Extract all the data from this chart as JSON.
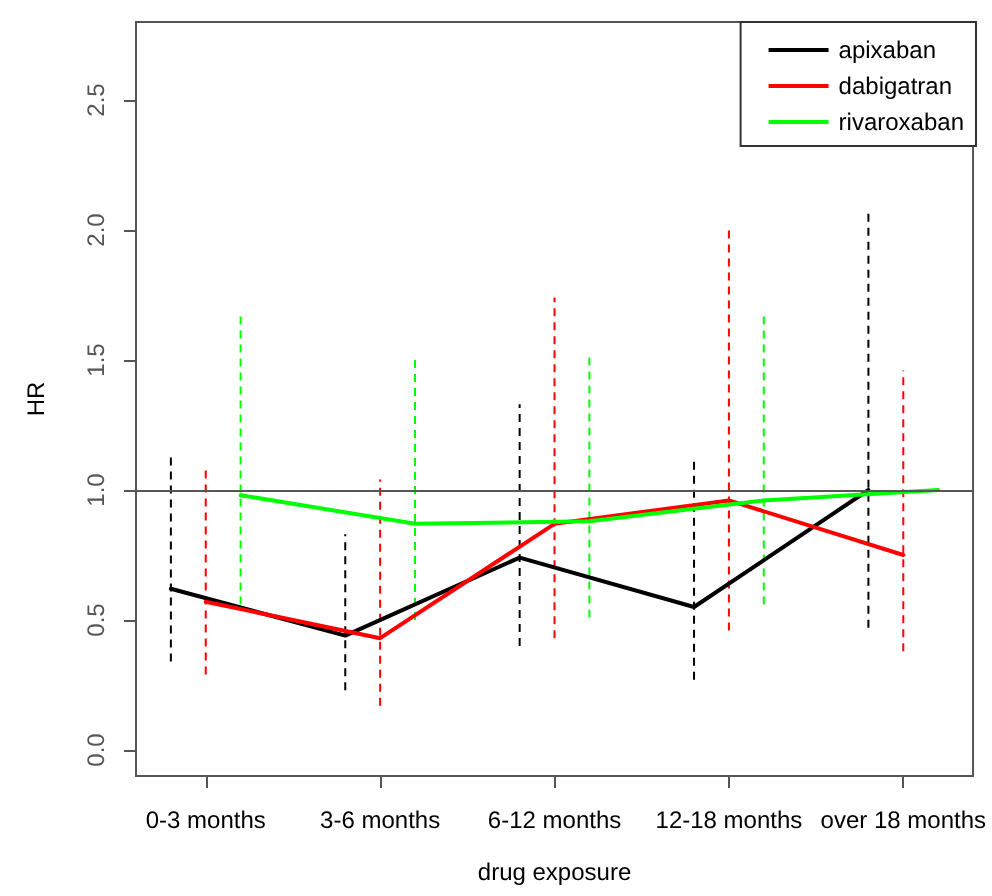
{
  "chart_data": {
    "type": "line",
    "xlabel": "drug exposure",
    "ylabel": "HR",
    "categories": [
      "0-3 months",
      "3-6 months",
      "6-12 months",
      "12-18 months",
      "over 18 months"
    ],
    "ylim": [
      -0.1,
      2.8
    ],
    "yticks": [
      {
        "value": 0,
        "label": "0.0"
      },
      {
        "value": 0.5,
        "label": "0.5"
      },
      {
        "value": 1,
        "label": "1.0"
      },
      {
        "value": 1.5,
        "label": "1.5"
      },
      {
        "value": 2,
        "label": "2.0"
      },
      {
        "value": 2.5,
        "label": "2.5"
      }
    ],
    "series": [
      {
        "name": "apixaban",
        "color": "#000000",
        "values": [
          0.62,
          0.44,
          0.74,
          0.55,
          1.0
        ],
        "errors": [
          [
            0.34,
            1.13
          ],
          [
            0.23,
            0.83
          ],
          [
            0.4,
            1.33
          ],
          [
            0.27,
            1.13
          ],
          [
            0.47,
            2.07
          ]
        ]
      },
      {
        "name": "dabigatran",
        "color": "#ff0000",
        "values": [
          0.57,
          0.43,
          0.87,
          0.96,
          0.75
        ],
        "errors": [
          [
            0.29,
            1.08
          ],
          [
            0.17,
            1.04
          ],
          [
            0.43,
            1.74
          ],
          [
            0.46,
            2.0
          ],
          [
            0.38,
            1.46
          ]
        ]
      },
      {
        "name": "rivaroxaban",
        "color": "#00ff00",
        "values": [
          0.98,
          0.87,
          0.88,
          0.96,
          1.0
        ],
        "errors": [
          [
            0.56,
            1.69
          ],
          [
            0.5,
            1.52
          ],
          [
            0.51,
            1.53
          ],
          [
            0.56,
            1.69
          ],
          null
        ]
      }
    ],
    "ref_lines": [
      {
        "axis": "y",
        "value": 1,
        "color": "#555555"
      }
    ],
    "grid": false,
    "legend": "top right",
    "marker": "none",
    "line_style": "solid"
  }
}
